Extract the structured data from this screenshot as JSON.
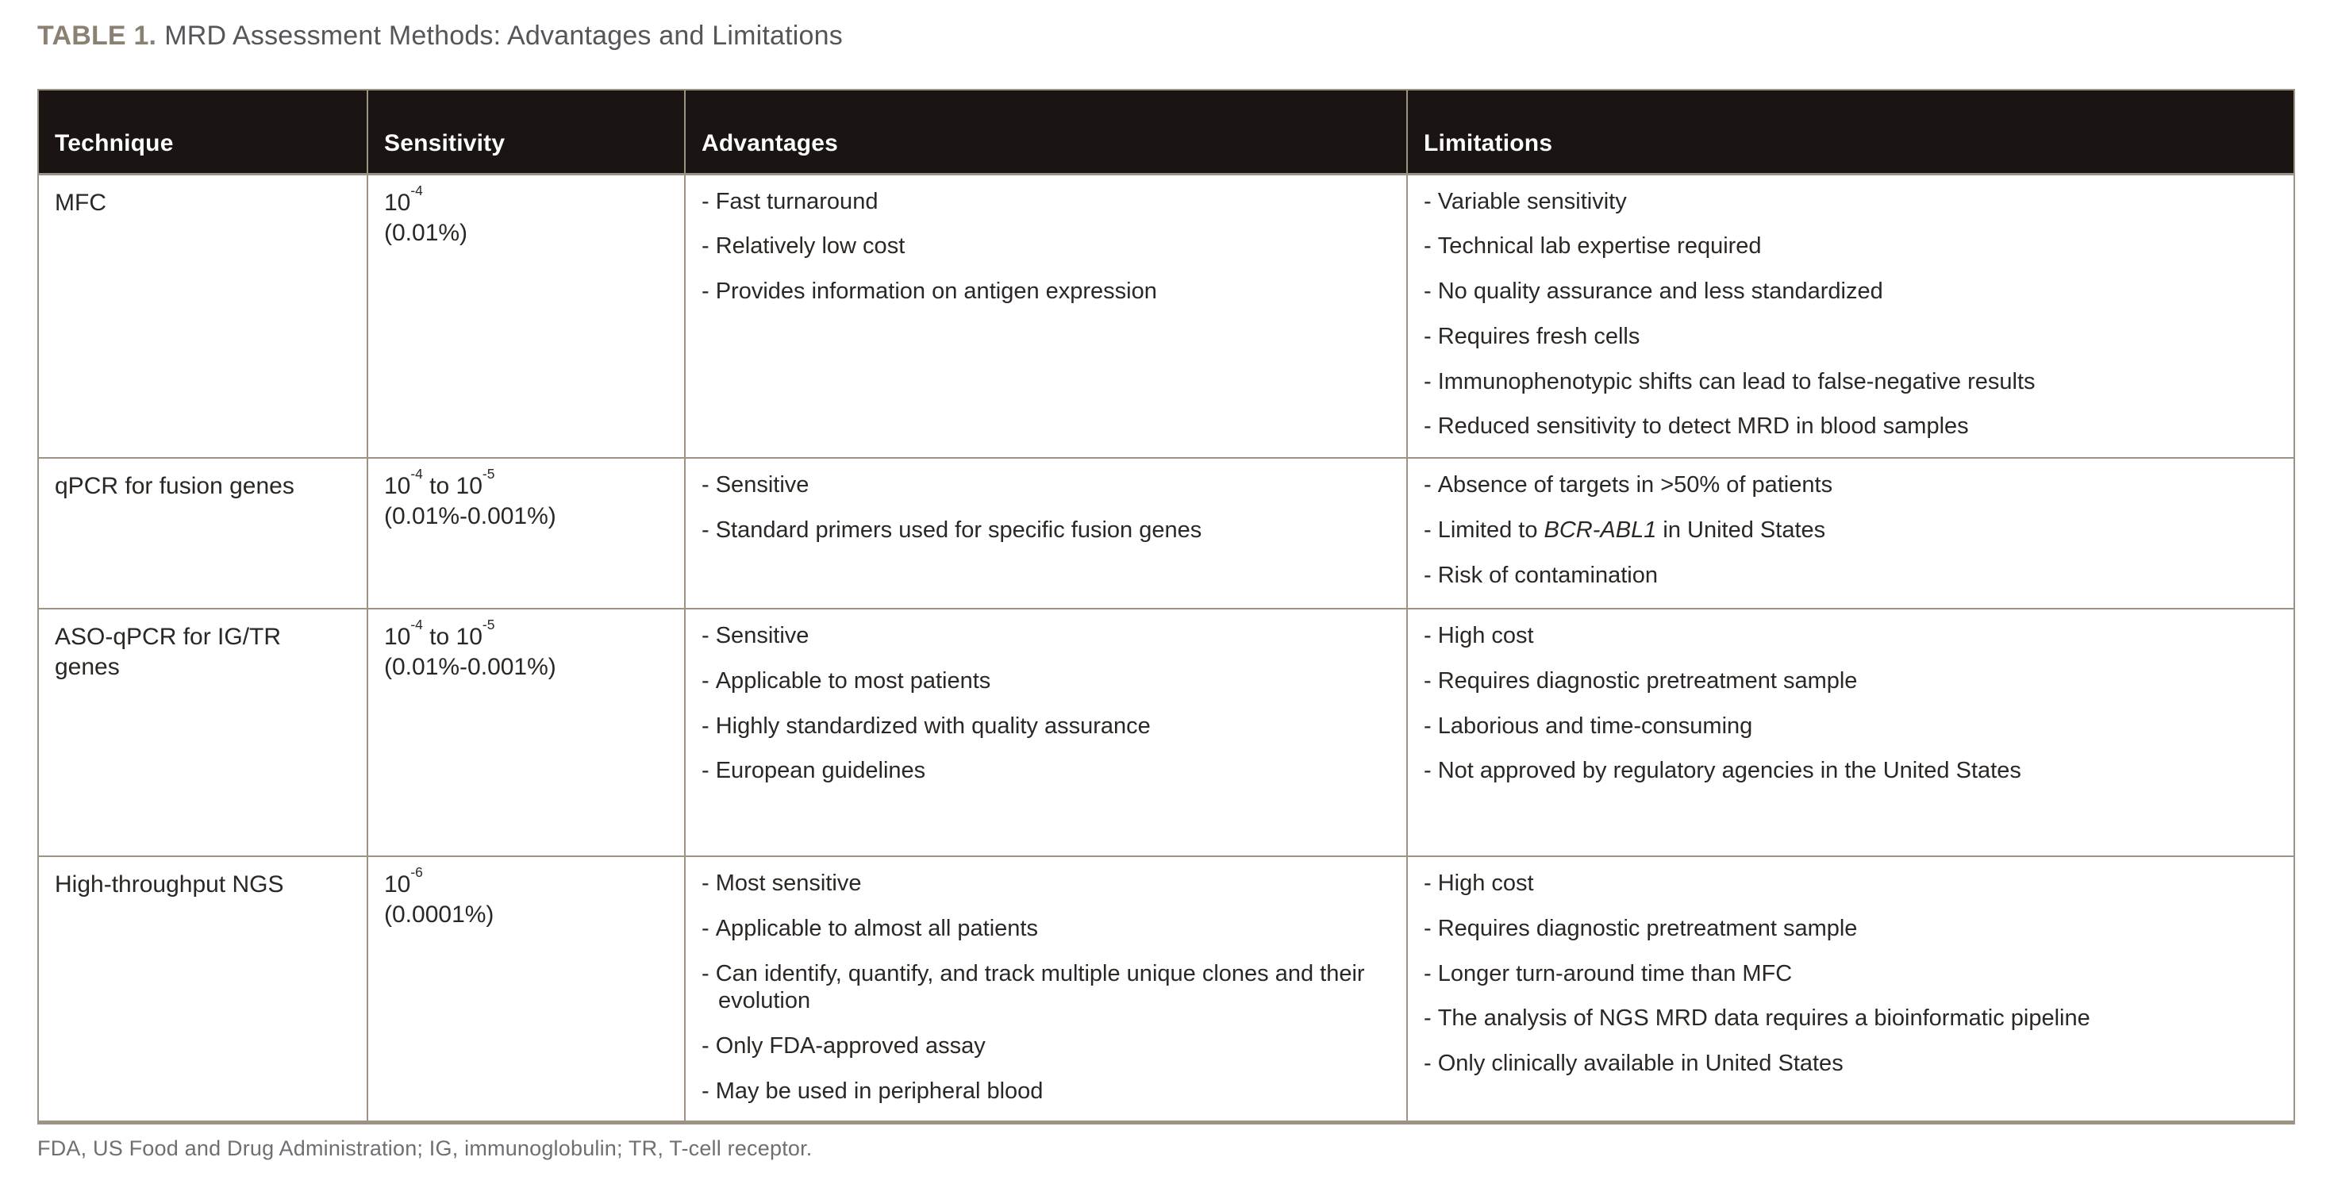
{
  "title": {
    "label": "TABLE 1.",
    "text": "MRD Assessment Methods: Advantages and Limitations"
  },
  "table": {
    "columns": [
      "Technique",
      "Sensitivity",
      "Advantages",
      "Limitations"
    ],
    "rows": [
      {
        "technique": "MFC",
        "sensitivity": {
          "segments": [
            {
              "t": "10"
            },
            {
              "sup": "-4"
            }
          ],
          "percent": "(0.01%)"
        },
        "advantages": [
          [
            {
              "t": "Fast turnaround"
            }
          ],
          [
            {
              "t": "Relatively low cost"
            }
          ],
          [
            {
              "t": "Provides information on antigen expression"
            }
          ]
        ],
        "limitations": [
          [
            {
              "t": "Variable sensitivity"
            }
          ],
          [
            {
              "t": "Technical lab expertise required"
            }
          ],
          [
            {
              "t": "No quality assurance and less standardized"
            }
          ],
          [
            {
              "t": "Requires fresh cells"
            }
          ],
          [
            {
              "t": "Immunophenotypic shifts can lead to false-negative results"
            }
          ],
          [
            {
              "t": "Reduced sensitivity to detect MRD in blood samples"
            }
          ]
        ]
      },
      {
        "technique": "qPCR for fusion genes",
        "sensitivity": {
          "segments": [
            {
              "t": "10"
            },
            {
              "sup": "-4"
            },
            {
              "t": " to 10"
            },
            {
              "sup": "-5"
            }
          ],
          "percent": "(0.01%-0.001%)"
        },
        "advantages": [
          [
            {
              "t": "Sensitive"
            }
          ],
          [
            {
              "t": "Standard primers used for specific fusion genes"
            }
          ]
        ],
        "limitations": [
          [
            {
              "t": "Absence of targets in >50% of patients"
            }
          ],
          [
            {
              "t": "Limited to "
            },
            {
              "t": "BCR-ABL1",
              "italic": true
            },
            {
              "t": " in United States"
            }
          ],
          [
            {
              "t": "Risk of contamination"
            }
          ]
        ]
      },
      {
        "technique": "ASO-qPCR for IG/TR genes",
        "sensitivity": {
          "segments": [
            {
              "t": "10"
            },
            {
              "sup": "-4"
            },
            {
              "t": " to 10"
            },
            {
              "sup": "-5"
            }
          ],
          "percent": "(0.01%-0.001%)"
        },
        "advantages": [
          [
            {
              "t": "Sensitive"
            }
          ],
          [
            {
              "t": "Applicable to most patients"
            }
          ],
          [
            {
              "t": "Highly standardized with quality assurance"
            }
          ],
          [
            {
              "t": "European guidelines"
            }
          ]
        ],
        "limitations": [
          [
            {
              "t": "High cost"
            }
          ],
          [
            {
              "t": "Requires diagnostic pretreatment sample"
            }
          ],
          [
            {
              "t": "Laborious and time-consuming"
            }
          ],
          [
            {
              "t": "Not approved by regulatory agencies in the United States"
            }
          ]
        ]
      },
      {
        "technique": "High-throughput NGS",
        "sensitivity": {
          "segments": [
            {
              "t": "10"
            },
            {
              "sup": "-6"
            }
          ],
          "percent": "(0.0001%)"
        },
        "advantages": [
          [
            {
              "t": "Most sensitive"
            }
          ],
          [
            {
              "t": "Applicable to almost all patients"
            }
          ],
          [
            {
              "t": "Can identify, quantify, and track multiple unique clones and their evolution"
            }
          ],
          [
            {
              "t": "Only FDA-approved assay"
            }
          ],
          [
            {
              "t": "May be used in peripheral blood"
            }
          ]
        ],
        "limitations": [
          [
            {
              "t": "High cost"
            }
          ],
          [
            {
              "t": "Requires diagnostic pretreatment sample"
            }
          ],
          [
            {
              "t": "Longer turn-around time than MFC"
            }
          ],
          [
            {
              "t": "The analysis of NGS MRD data requires a bioinformatic pipeline"
            }
          ],
          [
            {
              "t": "Only clinically available in United States"
            }
          ]
        ]
      }
    ]
  },
  "footnote": "FDA, US Food and Drug Administration; IG, immunoglobulin; TR, T-cell receptor.",
  "theme": {
    "background": "#ffffff",
    "header_bg": "#1a1512",
    "header_text": "#ffffff",
    "border": "#9c9384",
    "body_text": "#2b2724",
    "title_label_color": "#8b8172",
    "title_text_color": "#55565a",
    "footnote_color": "#6e6f72"
  }
}
